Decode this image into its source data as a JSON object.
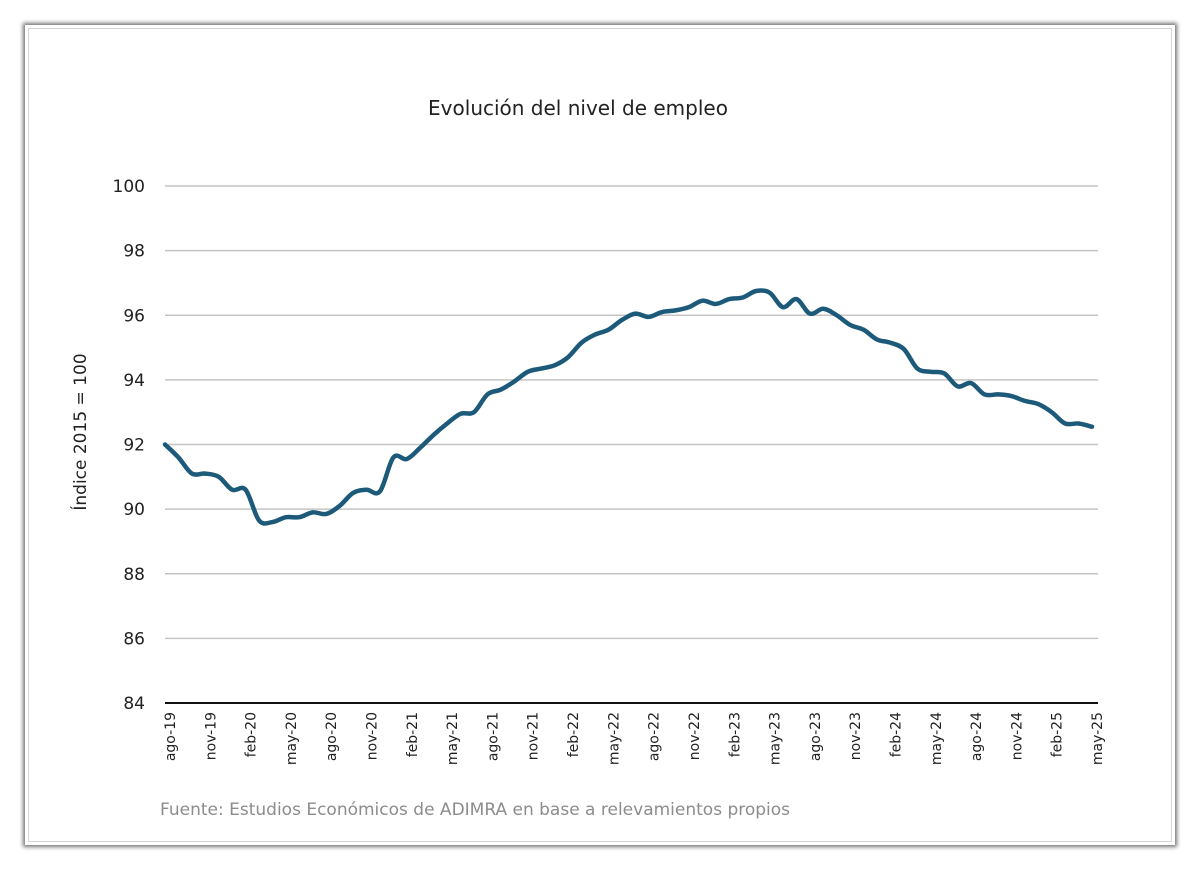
{
  "chart_data": {
    "type": "line",
    "title": "Evolución del nivel de empleo",
    "xlabel": "",
    "ylabel": "Índice 2015 = 100",
    "ylim": [
      84,
      100
    ],
    "yticks": [
      84,
      86,
      88,
      90,
      92,
      94,
      96,
      98,
      100
    ],
    "grid": true,
    "legend": "none",
    "source": "Fuente: Estudios Económicos de ADIMRA en base a relevamientos propios",
    "x": [
      "ago-19",
      "sep-19",
      "oct-19",
      "nov-19",
      "dic-19",
      "ene-20",
      "feb-20",
      "mar-20",
      "abr-20",
      "may-20",
      "jun-20",
      "jul-20",
      "ago-20",
      "sep-20",
      "oct-20",
      "nov-20",
      "dic-20",
      "ene-21",
      "feb-21",
      "mar-21",
      "abr-21",
      "may-21",
      "jun-21",
      "jul-21",
      "ago-21",
      "sep-21",
      "oct-21",
      "nov-21",
      "dic-21",
      "ene-22",
      "feb-22",
      "mar-22",
      "abr-22",
      "may-22",
      "jun-22",
      "jul-22",
      "ago-22",
      "sep-22",
      "oct-22",
      "nov-22",
      "dic-22",
      "ene-23",
      "feb-23",
      "mar-23",
      "abr-23",
      "may-23",
      "jun-23",
      "jul-23",
      "ago-23",
      "sep-23",
      "oct-23",
      "nov-23",
      "dic-23",
      "ene-24",
      "feb-24",
      "mar-24",
      "abr-24",
      "may-24",
      "jun-24",
      "jul-24",
      "ago-24",
      "sep-24",
      "oct-24",
      "nov-24",
      "dic-24",
      "ene-25",
      "feb-25",
      "mar-25",
      "abr-25",
      "may-25"
    ],
    "xtick_labels": [
      "ago-19",
      "nov-19",
      "feb-20",
      "may-20",
      "ago-20",
      "nov-20",
      "feb-21",
      "may-21",
      "ago-21",
      "nov-21",
      "feb-22",
      "may-22",
      "ago-22",
      "nov-22",
      "feb-23",
      "may-23",
      "ago-23",
      "nov-23",
      "feb-24",
      "may-24",
      "ago-24",
      "nov-24",
      "feb-25",
      "may-25"
    ],
    "series": [
      {
        "name": "",
        "color": "#1d5a7a",
        "values": [
          92.0,
          91.6,
          91.1,
          91.1,
          91.0,
          90.6,
          90.6,
          89.65,
          89.6,
          89.75,
          89.75,
          89.9,
          89.85,
          90.1,
          90.5,
          90.6,
          90.55,
          91.6,
          91.55,
          91.9,
          92.3,
          92.65,
          92.95,
          93.0,
          93.55,
          93.7,
          93.95,
          94.25,
          94.35,
          94.45,
          94.7,
          95.15,
          95.4,
          95.55,
          95.85,
          96.05,
          95.95,
          96.1,
          96.15,
          96.25,
          96.45,
          96.35,
          96.5,
          96.55,
          96.75,
          96.7,
          96.25,
          96.5,
          96.05,
          96.2,
          96.0,
          95.7,
          95.55,
          95.25,
          95.15,
          94.95,
          94.35,
          94.25,
          94.2,
          93.8,
          93.9,
          93.55,
          93.55,
          93.5,
          93.35,
          93.25,
          93.0,
          92.65,
          92.65,
          92.55
        ]
      }
    ]
  }
}
